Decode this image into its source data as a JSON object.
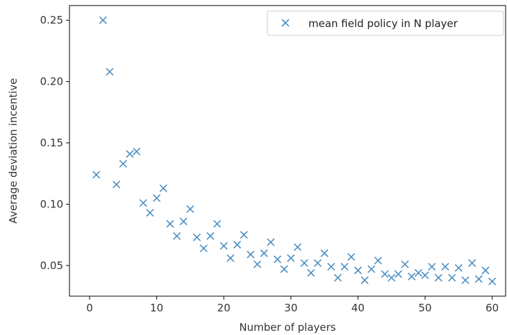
{
  "chart_data": {
    "type": "scatter",
    "xlabel": "Number of players",
    "ylabel": "Average deviation incentive",
    "xlim": [
      -3,
      62
    ],
    "ylim": [
      0.025,
      0.262
    ],
    "xticks": [
      0,
      10,
      20,
      30,
      40,
      50,
      60
    ],
    "yticks": [
      0.05,
      0.1,
      0.15,
      0.2,
      0.25
    ],
    "xtick_labels": [
      "0",
      "10",
      "20",
      "30",
      "40",
      "50",
      "60"
    ],
    "ytick_labels": [
      "0.05",
      "0.10",
      "0.15",
      "0.20",
      "0.25"
    ],
    "grid": false,
    "legend_position": "top-right",
    "series": [
      {
        "name": "mean field policy in N player",
        "color": "#4b8fc4",
        "marker": "x",
        "x": [
          1,
          2,
          3,
          4,
          5,
          6,
          7,
          8,
          9,
          10,
          11,
          12,
          13,
          14,
          15,
          16,
          17,
          18,
          19,
          20,
          21,
          22,
          23,
          24,
          25,
          26,
          27,
          28,
          29,
          30,
          31,
          32,
          33,
          34,
          35,
          36,
          37,
          38,
          39,
          40,
          41,
          42,
          43,
          44,
          45,
          46,
          47,
          48,
          49,
          50,
          51,
          52,
          53,
          54,
          55,
          56,
          57,
          58,
          59,
          60
        ],
        "y": [
          0.124,
          0.25,
          0.208,
          0.116,
          0.133,
          0.141,
          0.143,
          0.101,
          0.093,
          0.105,
          0.113,
          0.084,
          0.074,
          0.086,
          0.096,
          0.073,
          0.064,
          0.074,
          0.084,
          0.066,
          0.056,
          0.067,
          0.075,
          0.059,
          0.051,
          0.06,
          0.069,
          0.055,
          0.047,
          0.056,
          0.065,
          0.052,
          0.044,
          0.052,
          0.06,
          0.049,
          0.04,
          0.049,
          0.057,
          0.046,
          0.038,
          0.047,
          0.054,
          0.043,
          0.04,
          0.043,
          0.051,
          0.041,
          0.044,
          0.042,
          0.049,
          0.04,
          0.049,
          0.04,
          0.048,
          0.038,
          0.052,
          0.039,
          0.046,
          0.037
        ]
      }
    ]
  }
}
